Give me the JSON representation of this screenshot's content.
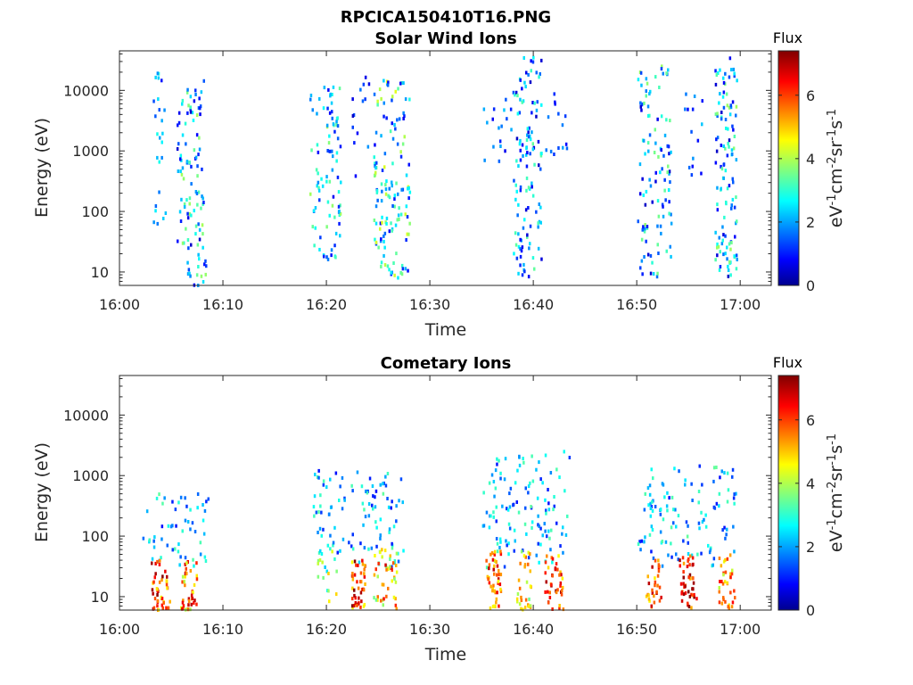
{
  "figure_title": "RPCICA150410T16.PNG",
  "colorbar": {
    "label_top": "Flux",
    "unit_base": "eV",
    "unit_exps": [
      "-1",
      "-2",
      "-1",
      "-1"
    ],
    "unit_parts": [
      "cm",
      "sr",
      "s"
    ],
    "ticks": [
      "0",
      "2",
      "4",
      "6"
    ],
    "range": [
      0,
      7.4
    ],
    "colormap": "jet"
  },
  "chart_data": [
    {
      "type": "heatmap",
      "title": "Solar Wind Ions",
      "xlabel": "Time",
      "ylabel": "Energy (eV)",
      "x_ticks": [
        "16:00",
        "16:10",
        "16:20",
        "16:30",
        "16:40",
        "16:50",
        "17:00"
      ],
      "y_ticks": [
        "10",
        "100",
        "1000",
        "10000"
      ],
      "xlim": [
        "16:00",
        "17:03"
      ],
      "ylim": [
        6,
        45000
      ],
      "y_scale": "log",
      "clusters": [
        {
          "t": [
            3.2,
            4.4
          ],
          "e": [
            60,
            25000
          ],
          "f": [
            0.8,
            3.0
          ],
          "n": 25
        },
        {
          "t": [
            5.5,
            8.3
          ],
          "e": [
            6,
            16000
          ],
          "f": [
            0.5,
            4.0
          ],
          "n": 110
        },
        {
          "t": [
            18.3,
            21.3
          ],
          "e": [
            15,
            12000
          ],
          "f": [
            0.8,
            4.0
          ],
          "n": 90
        },
        {
          "t": [
            22.2,
            24.2
          ],
          "e": [
            300,
            20000
          ],
          "f": [
            0.5,
            2.0
          ],
          "n": 14
        },
        {
          "t": [
            24.5,
            28.0
          ],
          "e": [
            8,
            15000
          ],
          "f": [
            0.8,
            4.5
          ],
          "n": 140
        },
        {
          "t": [
            35.0,
            38.0
          ],
          "e": [
            600,
            10000
          ],
          "f": [
            0.8,
            2.5
          ],
          "n": 18
        },
        {
          "t": [
            38.0,
            40.7
          ],
          "e": [
            8,
            35000
          ],
          "f": [
            0.5,
            3.5
          ],
          "n": 120
        },
        {
          "t": [
            41.0,
            43.5
          ],
          "e": [
            600,
            9000
          ],
          "f": [
            0.8,
            2.5
          ],
          "n": 14
        },
        {
          "t": [
            50.0,
            53.3
          ],
          "e": [
            8,
            25000
          ],
          "f": [
            0.5,
            4.0
          ],
          "n": 110
        },
        {
          "t": [
            54.5,
            56.3
          ],
          "e": [
            200,
            10000
          ],
          "f": [
            0.8,
            2.5
          ],
          "n": 14
        },
        {
          "t": [
            57.5,
            59.6
          ],
          "e": [
            8,
            35000
          ],
          "f": [
            0.5,
            4.0
          ],
          "n": 120
        }
      ]
    },
    {
      "type": "heatmap",
      "title": "Cometary Ions",
      "xlabel": "Time",
      "ylabel": "Energy (eV)",
      "x_ticks": [
        "16:00",
        "16:10",
        "16:20",
        "16:30",
        "16:40",
        "16:50",
        "17:00"
      ],
      "y_ticks": [
        "10",
        "100",
        "1000",
        "10000"
      ],
      "xlim": [
        "16:00",
        "17:03"
      ],
      "ylim": [
        6,
        45000
      ],
      "y_scale": "log",
      "clusters": [
        {
          "t": [
            2.0,
            8.5
          ],
          "e": [
            30,
            600
          ],
          "f": [
            1.0,
            3.5
          ],
          "n": 55
        },
        {
          "t": [
            3.0,
            4.8
          ],
          "e": [
            6,
            40
          ],
          "f": [
            4.5,
            7.4
          ],
          "n": 45
        },
        {
          "t": [
            5.8,
            7.5
          ],
          "e": [
            6,
            40
          ],
          "f": [
            4.0,
            7.0
          ],
          "n": 40
        },
        {
          "t": [
            18.5,
            27.5
          ],
          "e": [
            30,
            1500
          ],
          "f": [
            1.0,
            3.5
          ],
          "n": 110
        },
        {
          "t": [
            19.0,
            21.0
          ],
          "e": [
            8,
            60
          ],
          "f": [
            2.5,
            5.0
          ],
          "n": 14
        },
        {
          "t": [
            22.3,
            23.7
          ],
          "e": [
            6,
            40
          ],
          "f": [
            4.5,
            7.4
          ],
          "n": 45
        },
        {
          "t": [
            24.5,
            26.8
          ],
          "e": [
            6,
            60
          ],
          "f": [
            3.5,
            6.8
          ],
          "n": 45
        },
        {
          "t": [
            35.0,
            43.5
          ],
          "e": [
            30,
            2500
          ],
          "f": [
            1.0,
            3.5
          ],
          "n": 120
        },
        {
          "t": [
            35.3,
            36.8
          ],
          "e": [
            6,
            60
          ],
          "f": [
            4.5,
            7.0
          ],
          "n": 45
        },
        {
          "t": [
            38.3,
            39.7
          ],
          "e": [
            6,
            60
          ],
          "f": [
            3.5,
            6.0
          ],
          "n": 30
        },
        {
          "t": [
            41.0,
            42.8
          ],
          "e": [
            6,
            50
          ],
          "f": [
            4.5,
            7.4
          ],
          "n": 40
        },
        {
          "t": [
            50.0,
            59.5
          ],
          "e": [
            30,
            1500
          ],
          "f": [
            1.0,
            3.5
          ],
          "n": 115
        },
        {
          "t": [
            50.8,
            52.3
          ],
          "e": [
            6,
            40
          ],
          "f": [
            4.5,
            7.0
          ],
          "n": 30
        },
        {
          "t": [
            54.0,
            55.7
          ],
          "e": [
            6,
            50
          ],
          "f": [
            5.0,
            7.4
          ],
          "n": 45
        },
        {
          "t": [
            57.8,
            59.4
          ],
          "e": [
            6,
            50
          ],
          "f": [
            4.0,
            6.5
          ],
          "n": 35
        }
      ]
    }
  ]
}
